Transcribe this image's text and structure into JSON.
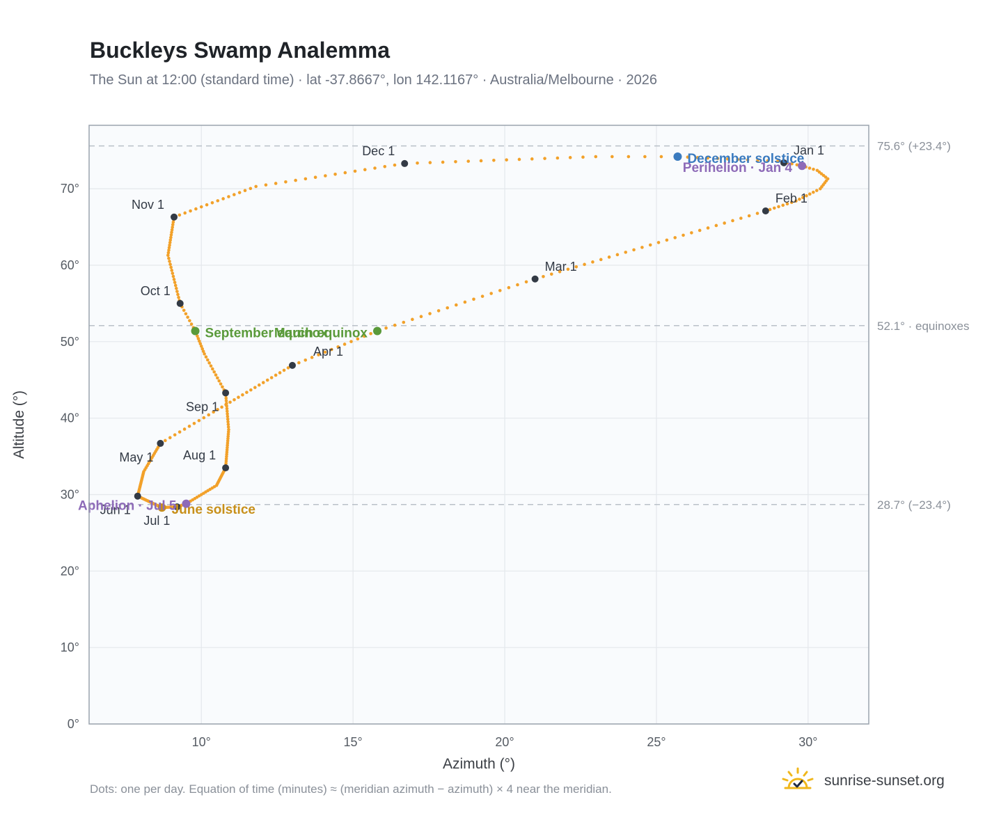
{
  "header": {
    "title": "Buckleys Swamp Analemma",
    "subtitle": "The Sun at 12:00 (standard time) · lat -37.8667°, lon 142.1167° · Australia/Melbourne · 2026"
  },
  "footer": {
    "note": "Dots: one per day. Equation of time (minutes) ≈ (meridian azimuth − azimuth) × 4 near the meridian.",
    "brand": "sunrise-sunset.org"
  },
  "colors": {
    "curve": "#f2a12a",
    "month_dot": "#333a45",
    "solstice_dec": "#3b7bbf",
    "solstice_jun": "#c8901a",
    "equinox": "#5a9a3a",
    "apsis": "#8e6bb8",
    "reference_line": "#b9c0c8",
    "plot_bg": "#f9fbfd"
  },
  "chart_data": {
    "type": "scatter",
    "xlabel": "Azimuth (°)",
    "ylabel": "Altitude (°)",
    "xlim": [
      6.3,
      32.0
    ],
    "ylim": [
      0,
      78.3
    ],
    "x_ticks": [
      10,
      15,
      20,
      25,
      30
    ],
    "x_tick_labels": [
      "10°",
      "15°",
      "20°",
      "25°",
      "30°"
    ],
    "y_ticks": [
      0,
      10,
      20,
      30,
      40,
      50,
      60,
      70
    ],
    "y_tick_labels": [
      "0°",
      "10°",
      "20°",
      "30°",
      "40°",
      "50°",
      "60°",
      "70°"
    ],
    "grid": true,
    "reference_lines": [
      {
        "y": 75.6,
        "label": "75.6° (+23.4°)"
      },
      {
        "y": 52.1,
        "label": "52.1° · equinoxes"
      },
      {
        "y": 28.7,
        "label": "28.7° (−23.4°)"
      }
    ],
    "series": [
      {
        "points": [
          {
            "doy": 1,
            "x": 29.3,
            "y": 73.4
          },
          {
            "doy": 4,
            "x": 29.8,
            "y": 73.0
          },
          {
            "doy": 8,
            "x": 30.3,
            "y": 72.4
          },
          {
            "doy": 13,
            "x": 30.65,
            "y": 71.3
          },
          {
            "doy": 18,
            "x": 30.4,
            "y": 70.0
          },
          {
            "doy": 25,
            "x": 29.6,
            "y": 68.4
          },
          {
            "doy": 32,
            "x": 28.6,
            "y": 67.1
          },
          {
            "doy": 60,
            "x": 21.0,
            "y": 58.2
          },
          {
            "doy": 78,
            "x": 15.8,
            "y": 51.4
          },
          {
            "doy": 91,
            "x": 13.0,
            "y": 46.9
          },
          {
            "doy": 110,
            "x": 10.4,
            "y": 40.8
          },
          {
            "doy": 121,
            "x": 8.65,
            "y": 36.7
          },
          {
            "doy": 135,
            "x": 8.1,
            "y": 33.0
          },
          {
            "doy": 152,
            "x": 7.9,
            "y": 29.8
          },
          {
            "doy": 172,
            "x": 8.7,
            "y": 28.3
          },
          {
            "doy": 182,
            "x": 9.2,
            "y": 28.4
          },
          {
            "doy": 186,
            "x": 9.5,
            "y": 28.8
          },
          {
            "doy": 200,
            "x": 10.5,
            "y": 31.2
          },
          {
            "doy": 213,
            "x": 10.8,
            "y": 33.5
          },
          {
            "doy": 230,
            "x": 10.9,
            "y": 38.5
          },
          {
            "doy": 244,
            "x": 10.8,
            "y": 43.3
          },
          {
            "doy": 257,
            "x": 10.1,
            "y": 48.4
          },
          {
            "doy": 266,
            "x": 9.8,
            "y": 51.4
          },
          {
            "doy": 274,
            "x": 9.3,
            "y": 55.0
          },
          {
            "doy": 290,
            "x": 8.9,
            "y": 61.3
          },
          {
            "doy": 305,
            "x": 9.1,
            "y": 66.3
          },
          {
            "doy": 320,
            "x": 11.8,
            "y": 70.3
          },
          {
            "doy": 335,
            "x": 16.7,
            "y": 73.3
          },
          {
            "doy": 350,
            "x": 23.0,
            "y": 74.2
          },
          {
            "doy": 355,
            "x": 25.7,
            "y": 74.2
          },
          {
            "doy": 365,
            "x": 29.0,
            "y": 73.6
          }
        ]
      }
    ],
    "month_markers": [
      {
        "label": "Jan 1",
        "x": 29.2,
        "y": 73.4,
        "pos": "ne"
      },
      {
        "label": "Feb 1",
        "x": 28.6,
        "y": 67.1,
        "pos": "ne"
      },
      {
        "label": "Mar 1",
        "x": 21.0,
        "y": 58.2,
        "pos": "ne"
      },
      {
        "label": "Apr 1",
        "x": 13.0,
        "y": 46.9,
        "pos": "se"
      },
      {
        "label": "May 1",
        "x": 8.65,
        "y": 36.7,
        "pos": "sw"
      },
      {
        "label": "Jun 1",
        "x": 7.9,
        "y": 29.8,
        "pos": "sw"
      },
      {
        "label": "Jul 1",
        "x": 9.2,
        "y": 28.4,
        "pos": "sw"
      },
      {
        "label": "Aug 1",
        "x": 10.8,
        "y": 33.5,
        "pos": "nw"
      },
      {
        "label": "Sep 1",
        "x": 10.8,
        "y": 43.3,
        "pos": "sw"
      },
      {
        "label": "Oct 1",
        "x": 9.3,
        "y": 55.0,
        "pos": "nw"
      },
      {
        "label": "Nov 1",
        "x": 9.1,
        "y": 66.3,
        "pos": "nw"
      },
      {
        "label": "Dec 1",
        "x": 16.7,
        "y": 73.3,
        "pos": "nw"
      }
    ],
    "events": [
      {
        "label": "December solstice",
        "x": 25.7,
        "y": 74.2,
        "kind": "solstice_dec",
        "pos": "e"
      },
      {
        "label": "Perihelion · Jan 4",
        "x": 29.8,
        "y": 73.0,
        "kind": "apsis",
        "pos": "w"
      },
      {
        "label": "March equinox",
        "x": 15.8,
        "y": 51.4,
        "kind": "equinox",
        "pos": "w"
      },
      {
        "label": "September equinox",
        "x": 9.8,
        "y": 51.4,
        "kind": "equinox",
        "pos": "e"
      },
      {
        "label": "June solstice",
        "x": 8.7,
        "y": 28.3,
        "kind": "solstice_jun",
        "pos": "e"
      },
      {
        "label": "Aphelion · Jul 5",
        "x": 9.5,
        "y": 28.8,
        "kind": "apsis",
        "pos": "w"
      }
    ]
  }
}
